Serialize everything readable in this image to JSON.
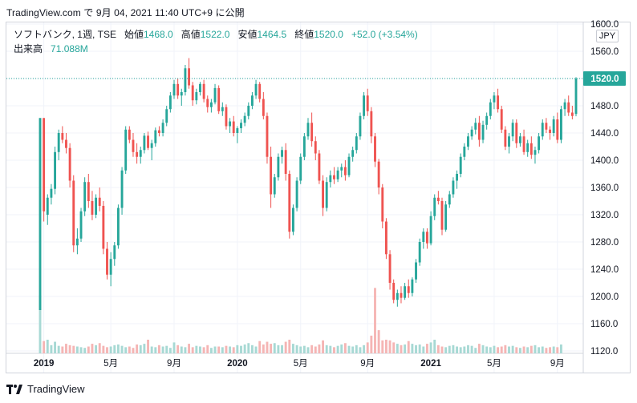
{
  "caption": "TradingView.com で 9月 04, 2021 11:40 UTC+9 に公開",
  "legend": {
    "symbol": "ソフトバンク, 1週, TSE",
    "open_label": "始値",
    "open": "1468.0",
    "high_label": "高値",
    "high": "1522.0",
    "low_label": "安値",
    "low": "1464.5",
    "close_label": "終値",
    "close": "1520.0",
    "change": "+52.0 (+3.54%)"
  },
  "volume": {
    "label": "出来高",
    "value": "71.088M"
  },
  "currency": "JPY",
  "last_price": "1520.0",
  "footer": {
    "brand": "TradingView"
  },
  "colors": {
    "up": "#26a69a",
    "down": "#ef5350",
    "up_vol": "#a7d9d4",
    "down_vol": "#f5b5b4",
    "last": "#26a69a"
  },
  "chart_data": {
    "type": "candlestick",
    "y_ticks": [
      1120,
      1160,
      1200,
      1240,
      1280,
      1320,
      1360,
      1400,
      1440,
      1480,
      1520,
      1560,
      1600
    ],
    "y_tick_labels": [
      "1120.0",
      "1160.0",
      "1200.0",
      "1240.0",
      "1280.0",
      "1320.0",
      "1360.0",
      "1400.0",
      "1440.0",
      "1480.0",
      "1520.0",
      "1560.0",
      "1600.0"
    ],
    "ylim": [
      1120,
      1600
    ],
    "x_ticks": [
      {
        "label": "2019",
        "index": 1,
        "bold": true
      },
      {
        "label": "5月",
        "index": 19,
        "bold": false
      },
      {
        "label": "9月",
        "index": 36,
        "bold": false
      },
      {
        "label": "2020",
        "index": 53,
        "bold": true
      },
      {
        "label": "5月",
        "index": 70,
        "bold": false
      },
      {
        "label": "9月",
        "index": 88,
        "bold": false
      },
      {
        "label": "2021",
        "index": 105,
        "bold": true
      },
      {
        "label": "5月",
        "index": 122,
        "bold": false
      },
      {
        "label": "9月",
        "index": 139,
        "bold": false
      }
    ],
    "candles": [
      [
        1180,
        1462,
        1180,
        1462
      ],
      [
        1462,
        1462,
        1310,
        1325
      ],
      [
        1320,
        1350,
        1305,
        1345
      ],
      [
        1345,
        1365,
        1335,
        1358
      ],
      [
        1358,
        1420,
        1350,
        1412
      ],
      [
        1412,
        1445,
        1400,
        1440
      ],
      [
        1440,
        1450,
        1425,
        1430
      ],
      [
        1430,
        1440,
        1410,
        1418
      ],
      [
        1418,
        1425,
        1360,
        1370
      ],
      [
        1370,
        1378,
        1265,
        1275
      ],
      [
        1275,
        1300,
        1262,
        1285
      ],
      [
        1285,
        1330,
        1280,
        1325
      ],
      [
        1325,
        1375,
        1318,
        1368
      ],
      [
        1368,
        1380,
        1330,
        1340
      ],
      [
        1340,
        1355,
        1312,
        1320
      ],
      [
        1320,
        1350,
        1315,
        1345
      ],
      [
        1345,
        1360,
        1325,
        1333
      ],
      [
        1333,
        1340,
        1262,
        1270
      ],
      [
        1270,
        1280,
        1225,
        1232
      ],
      [
        1232,
        1265,
        1215,
        1255
      ],
      [
        1255,
        1280,
        1245,
        1275
      ],
      [
        1275,
        1335,
        1270,
        1330
      ],
      [
        1330,
        1390,
        1320,
        1385
      ],
      [
        1385,
        1450,
        1380,
        1445
      ],
      [
        1445,
        1450,
        1425,
        1430
      ],
      [
        1430,
        1440,
        1405,
        1412
      ],
      [
        1412,
        1425,
        1395,
        1405
      ],
      [
        1405,
        1420,
        1395,
        1415
      ],
      [
        1415,
        1440,
        1410,
        1436
      ],
      [
        1436,
        1442,
        1415,
        1418
      ],
      [
        1418,
        1430,
        1400,
        1425
      ],
      [
        1425,
        1448,
        1420,
        1444
      ],
      [
        1444,
        1450,
        1435,
        1440
      ],
      [
        1440,
        1460,
        1435,
        1455
      ],
      [
        1455,
        1480,
        1450,
        1475
      ],
      [
        1475,
        1500,
        1470,
        1495
      ],
      [
        1495,
        1518,
        1490,
        1512
      ],
      [
        1512,
        1520,
        1490,
        1495
      ],
      [
        1495,
        1505,
        1480,
        1500
      ],
      [
        1500,
        1540,
        1495,
        1535
      ],
      [
        1535,
        1550,
        1505,
        1510
      ],
      [
        1510,
        1515,
        1480,
        1488
      ],
      [
        1488,
        1505,
        1482,
        1500
      ],
      [
        1500,
        1515,
        1495,
        1512
      ],
      [
        1512,
        1518,
        1485,
        1490
      ],
      [
        1490,
        1495,
        1470,
        1478
      ],
      [
        1478,
        1490,
        1470,
        1485
      ],
      [
        1485,
        1512,
        1482,
        1506
      ],
      [
        1506,
        1510,
        1468,
        1472
      ],
      [
        1472,
        1485,
        1465,
        1478
      ],
      [
        1478,
        1482,
        1445,
        1450
      ],
      [
        1450,
        1462,
        1440,
        1457
      ],
      [
        1457,
        1465,
        1435,
        1440
      ],
      [
        1440,
        1450,
        1425,
        1447
      ],
      [
        1447,
        1460,
        1440,
        1455
      ],
      [
        1455,
        1470,
        1450,
        1465
      ],
      [
        1465,
        1485,
        1460,
        1480
      ],
      [
        1480,
        1500,
        1475,
        1495
      ],
      [
        1495,
        1518,
        1490,
        1512
      ],
      [
        1512,
        1515,
        1485,
        1490
      ],
      [
        1490,
        1500,
        1460,
        1465
      ],
      [
        1465,
        1470,
        1395,
        1405
      ],
      [
        1405,
        1420,
        1330,
        1350
      ],
      [
        1350,
        1380,
        1345,
        1375
      ],
      [
        1375,
        1410,
        1370,
        1405
      ],
      [
        1405,
        1420,
        1395,
        1415
      ],
      [
        1415,
        1425,
        1370,
        1380
      ],
      [
        1380,
        1385,
        1285,
        1295
      ],
      [
        1295,
        1335,
        1290,
        1330
      ],
      [
        1330,
        1375,
        1325,
        1370
      ],
      [
        1370,
        1410,
        1365,
        1405
      ],
      [
        1405,
        1440,
        1400,
        1435
      ],
      [
        1435,
        1462,
        1430,
        1455
      ],
      [
        1455,
        1470,
        1420,
        1428
      ],
      [
        1428,
        1435,
        1400,
        1410
      ],
      [
        1410,
        1415,
        1365,
        1370
      ],
      [
        1370,
        1378,
        1318,
        1330
      ],
      [
        1330,
        1375,
        1325,
        1368
      ],
      [
        1368,
        1385,
        1360,
        1378
      ],
      [
        1378,
        1390,
        1365,
        1372
      ],
      [
        1372,
        1390,
        1368,
        1385
      ],
      [
        1385,
        1395,
        1375,
        1390
      ],
      [
        1390,
        1400,
        1370,
        1378
      ],
      [
        1378,
        1410,
        1375,
        1405
      ],
      [
        1405,
        1420,
        1398,
        1415
      ],
      [
        1415,
        1440,
        1410,
        1435
      ],
      [
        1435,
        1470,
        1430,
        1465
      ],
      [
        1465,
        1500,
        1460,
        1495
      ],
      [
        1495,
        1505,
        1465,
        1472
      ],
      [
        1472,
        1478,
        1425,
        1435
      ],
      [
        1435,
        1440,
        1390,
        1398
      ],
      [
        1398,
        1402,
        1350,
        1360
      ],
      [
        1360,
        1365,
        1300,
        1310
      ],
      [
        1310,
        1315,
        1255,
        1262
      ],
      [
        1262,
        1268,
        1210,
        1220
      ],
      [
        1220,
        1225,
        1190,
        1195
      ],
      [
        1195,
        1210,
        1185,
        1205
      ],
      [
        1205,
        1215,
        1190,
        1198
      ],
      [
        1198,
        1220,
        1195,
        1215
      ],
      [
        1215,
        1225,
        1198,
        1205
      ],
      [
        1205,
        1228,
        1200,
        1225
      ],
      [
        1225,
        1255,
        1220,
        1250
      ],
      [
        1250,
        1285,
        1245,
        1280
      ],
      [
        1280,
        1300,
        1270,
        1295
      ],
      [
        1295,
        1300,
        1270,
        1278
      ],
      [
        1278,
        1325,
        1275,
        1318
      ],
      [
        1318,
        1350,
        1312,
        1345
      ],
      [
        1345,
        1355,
        1335,
        1340
      ],
      [
        1340,
        1345,
        1290,
        1298
      ],
      [
        1298,
        1340,
        1295,
        1335
      ],
      [
        1335,
        1355,
        1330,
        1350
      ],
      [
        1350,
        1375,
        1345,
        1370
      ],
      [
        1370,
        1385,
        1358,
        1380
      ],
      [
        1380,
        1410,
        1375,
        1405
      ],
      [
        1405,
        1425,
        1400,
        1420
      ],
      [
        1420,
        1440,
        1415,
        1435
      ],
      [
        1435,
        1450,
        1430,
        1445
      ],
      [
        1445,
        1462,
        1438,
        1455
      ],
      [
        1455,
        1465,
        1420,
        1430
      ],
      [
        1430,
        1458,
        1425,
        1452
      ],
      [
        1452,
        1470,
        1445,
        1465
      ],
      [
        1465,
        1490,
        1460,
        1485
      ],
      [
        1485,
        1500,
        1475,
        1495
      ],
      [
        1495,
        1505,
        1470,
        1475
      ],
      [
        1475,
        1480,
        1440,
        1445
      ],
      [
        1445,
        1450,
        1415,
        1420
      ],
      [
        1420,
        1440,
        1410,
        1435
      ],
      [
        1435,
        1460,
        1428,
        1455
      ],
      [
        1455,
        1460,
        1418,
        1425
      ],
      [
        1425,
        1440,
        1420,
        1435
      ],
      [
        1435,
        1445,
        1408,
        1412
      ],
      [
        1412,
        1430,
        1405,
        1425
      ],
      [
        1425,
        1435,
        1402,
        1408
      ],
      [
        1408,
        1420,
        1395,
        1415
      ],
      [
        1415,
        1440,
        1410,
        1435
      ],
      [
        1435,
        1460,
        1430,
        1455
      ],
      [
        1455,
        1462,
        1440,
        1445
      ],
      [
        1445,
        1450,
        1430,
        1440
      ],
      [
        1440,
        1465,
        1435,
        1460
      ],
      [
        1460,
        1470,
        1425,
        1430
      ],
      [
        1430,
        1480,
        1425,
        1475
      ],
      [
        1475,
        1490,
        1465,
        1485
      ],
      [
        1485,
        1495,
        1465,
        1470
      ],
      [
        1470,
        1480,
        1460,
        1465
      ],
      [
        1468,
        1522,
        1464.5,
        1520
      ]
    ],
    "volumes": [
      0.85,
      0.18,
      0.2,
      0.12,
      0.17,
      0.11,
      0.1,
      0.14,
      0.12,
      0.11,
      0.1,
      0.09,
      0.08,
      0.1,
      0.14,
      0.12,
      0.15,
      0.11,
      0.09,
      0.1,
      0.12,
      0.13,
      0.11,
      0.09,
      0.1,
      0.08,
      0.13,
      0.12,
      0.14,
      0.2,
      0.1,
      0.09,
      0.12,
      0.1,
      0.11,
      0.08,
      0.16,
      0.12,
      0.1,
      0.09,
      0.14,
      0.09,
      0.11,
      0.1,
      0.09,
      0.12,
      0.08,
      0.1,
      0.1,
      0.09,
      0.11,
      0.1,
      0.09,
      0.12,
      0.11,
      0.13,
      0.15,
      0.12,
      0.1,
      0.18,
      0.13,
      0.17,
      0.14,
      0.15,
      0.12,
      0.12,
      0.17,
      0.2,
      0.14,
      0.12,
      0.1,
      0.11,
      0.09,
      0.12,
      0.1,
      0.13,
      0.19,
      0.12,
      0.11,
      0.09,
      0.11,
      0.13,
      0.15,
      0.11,
      0.1,
      0.12,
      0.09,
      0.12,
      0.16,
      0.26,
      0.96,
      0.34,
      0.19,
      0.2,
      0.19,
      0.16,
      0.14,
      0.12,
      0.13,
      0.18,
      0.14,
      0.12,
      0.13,
      0.1,
      0.14,
      0.16,
      0.2,
      0.12,
      0.1,
      0.09,
      0.11,
      0.12,
      0.1,
      0.09,
      0.1,
      0.12,
      0.11,
      0.08,
      0.14,
      0.12,
      0.1,
      0.09,
      0.11,
      0.09,
      0.1,
      0.12,
      0.1,
      0.11,
      0.09,
      0.08,
      0.1,
      0.09,
      0.11,
      0.12,
      0.09,
      0.1,
      0.08,
      0.09,
      0.1,
      0.09,
      0.13
    ]
  }
}
